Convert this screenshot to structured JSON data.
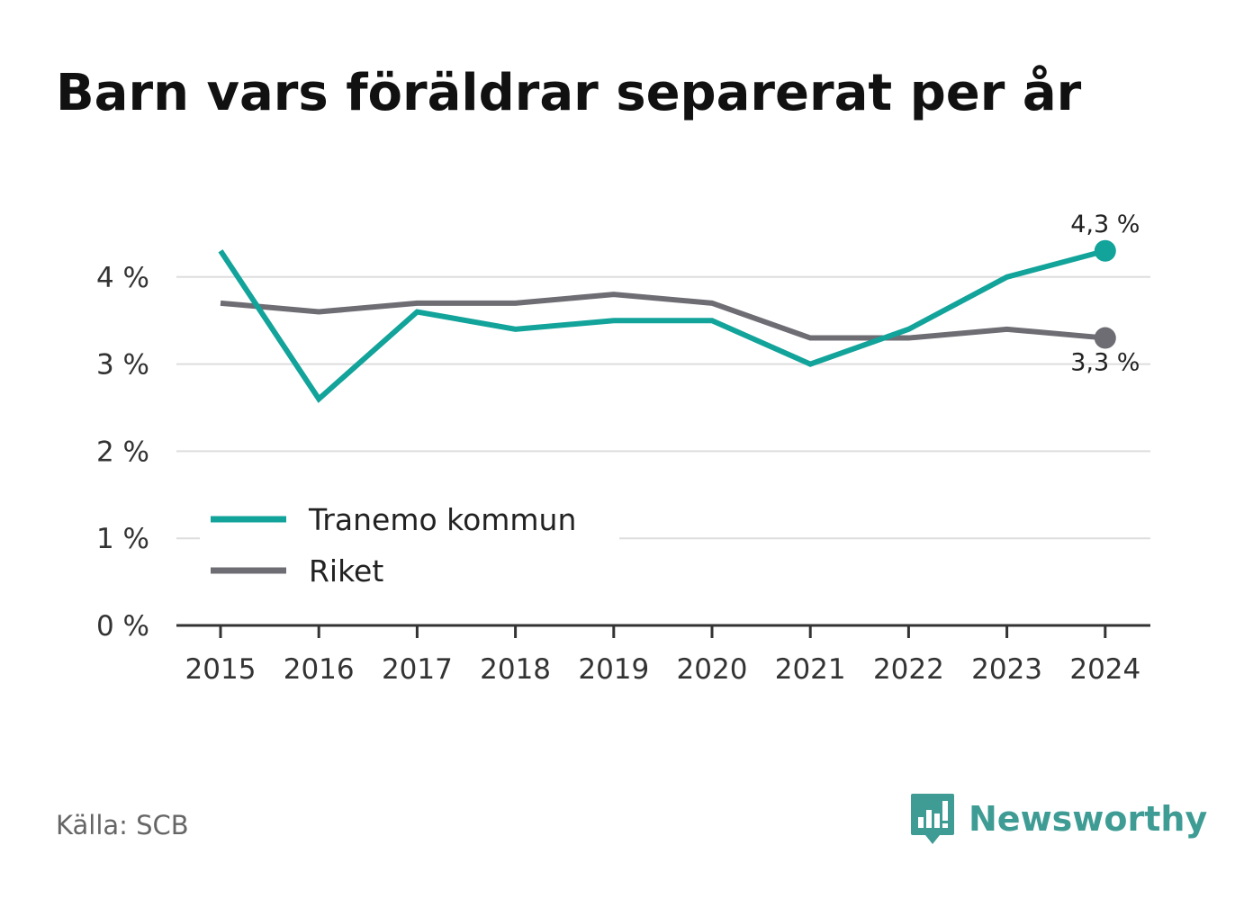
{
  "chart_data": {
    "type": "line",
    "title": "Barn vars föräldrar separerat per år",
    "xlabel": "",
    "ylabel": "",
    "x": [
      "2015",
      "2016",
      "2017",
      "2018",
      "2019",
      "2020",
      "2021",
      "2022",
      "2023",
      "2024"
    ],
    "ylim": [
      0,
      4.5
    ],
    "yticks": [
      0,
      1,
      2,
      3,
      4
    ],
    "ytick_labels": [
      "0 %",
      "1 %",
      "2 %",
      "3 %",
      "4 %"
    ],
    "grid": true,
    "legend_position": "lower-left",
    "series": [
      {
        "name": "Tranemo kommun",
        "color": "#12a39a",
        "values": [
          4.3,
          2.6,
          3.6,
          3.4,
          3.5,
          3.5,
          3.0,
          3.4,
          4.0,
          4.3
        ],
        "end_label": "4,3 %"
      },
      {
        "name": "Riket",
        "color": "#6f6d74",
        "values": [
          3.7,
          3.6,
          3.7,
          3.7,
          3.8,
          3.7,
          3.3,
          3.3,
          3.4,
          3.3
        ],
        "end_label": "3,3 %"
      }
    ]
  },
  "footer": {
    "source": "Källa: SCB",
    "brand_name": "Newsworthy",
    "brand_icon": "bar-chart-speech-bubble-icon",
    "brand_color": "#3e9c95"
  }
}
